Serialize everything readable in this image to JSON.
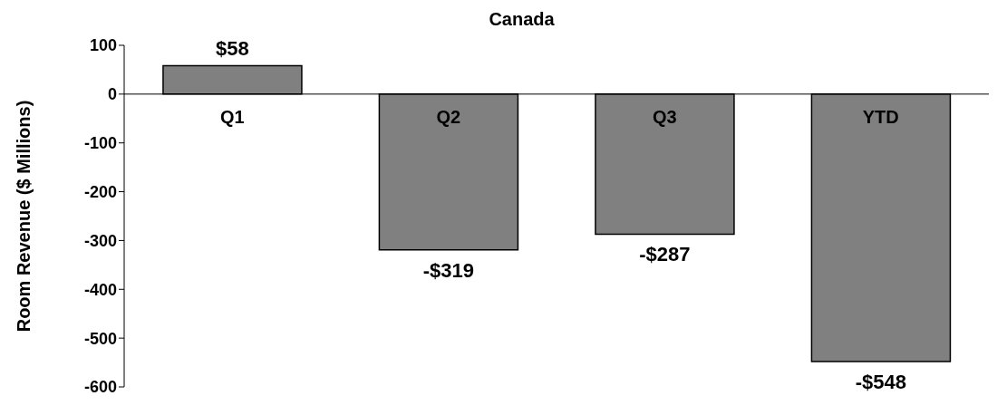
{
  "chart_data": {
    "type": "bar",
    "title": "Canada",
    "ylabel": "Room Revenue ($ Millions)",
    "categories": [
      "Q1",
      "Q2",
      "Q3",
      "YTD"
    ],
    "values": [
      58,
      -319,
      -287,
      -548
    ],
    "value_labels": [
      "$58",
      "-$319",
      "-$287",
      "-$548"
    ],
    "color": "#808080",
    "ylim": [
      -600,
      100
    ],
    "yticks": [
      -600,
      -500,
      -400,
      -300,
      -200,
      -100,
      0,
      100
    ],
    "grid": false
  }
}
